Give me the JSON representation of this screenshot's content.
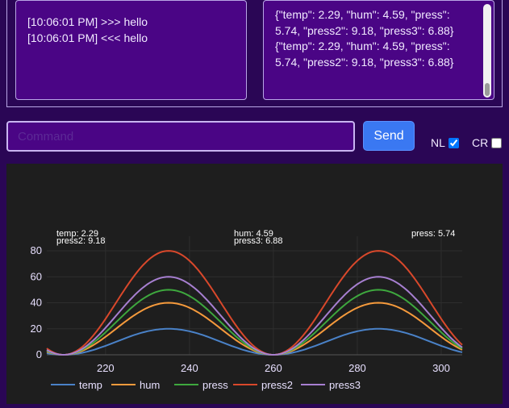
{
  "log": {
    "lines": [
      "[10:06:01 PM] >>> hello",
      "[10:06:01 PM] <<< hello"
    ]
  },
  "serial": {
    "entries": [
      "{\"temp\": 2.29, \"hum\": 4.59, \"press\": 5.74, \"press2\": 9.18, \"press3\": 6.88}",
      "{\"temp\": 2.29, \"hum\": 4.59, \"press\": 5.74, \"press2\": 9.18, \"press3\": 6.88}"
    ]
  },
  "command": {
    "placeholder": "Command",
    "value": ""
  },
  "send": {
    "label": "Send"
  },
  "options": {
    "nl": {
      "label": "NL",
      "checked": true
    },
    "cr": {
      "label": "CR",
      "checked": false
    }
  },
  "chart_data": {
    "type": "line",
    "xlim": [
      206,
      305
    ],
    "ylim": [
      0,
      85
    ],
    "xticks": [
      220,
      240,
      260,
      280,
      300
    ],
    "yticks": [
      0,
      20,
      40,
      60,
      80
    ],
    "grid": true,
    "legend_position": "bottom",
    "annotations": [
      "temp: 2.29",
      "press2: 9.18",
      "hum: 4.59",
      "press3: 6.88",
      "press: 5.74"
    ],
    "period": 50,
    "peak_x": 235,
    "series": [
      {
        "name": "temp",
        "color": "#4a82c8",
        "amplitude": 20
      },
      {
        "name": "hum",
        "color": "#f59a3c",
        "amplitude": 40
      },
      {
        "name": "press",
        "color": "#3ea83e",
        "amplitude": 50
      },
      {
        "name": "press2",
        "color": "#d9482b",
        "amplitude": 80
      },
      {
        "name": "press3",
        "color": "#a77fd1",
        "amplitude": 60
      }
    ]
  }
}
